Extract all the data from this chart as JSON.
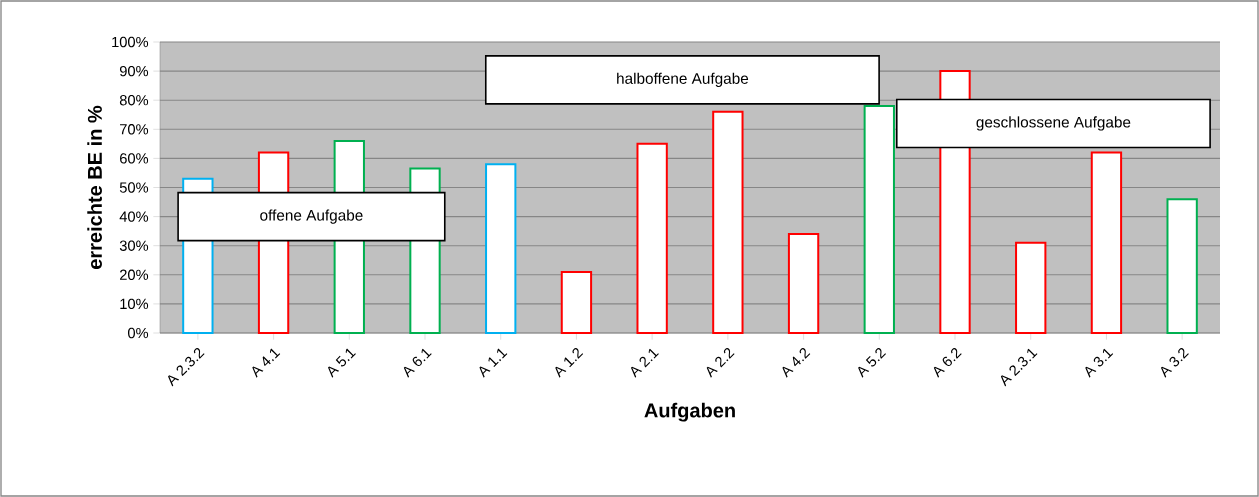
{
  "chart_data": {
    "type": "bar",
    "xlabel": "Aufgaben",
    "ylabel": "erreichte BE in %",
    "categories": [
      "A 2.3.2",
      "A 4.1",
      "A 5.1",
      "A 6.1",
      "A 1.1",
      "A 1.2",
      "A 2.1",
      "A 2.2",
      "A 4.2",
      "A 5.2",
      "A 6.2",
      "A 2.3.1",
      "A 3.1",
      "A 3.2"
    ],
    "values": [
      53,
      62,
      66,
      56.5,
      58,
      21,
      65,
      76,
      34,
      78,
      90,
      31,
      62,
      46
    ],
    "colors": [
      "#00b0f0",
      "#ff0000",
      "#00b050",
      "#00b050",
      "#00b0f0",
      "#ff0000",
      "#ff0000",
      "#ff0000",
      "#ff0000",
      "#00b050",
      "#ff0000",
      "#ff0000",
      "#ff0000",
      "#00b050"
    ],
    "ylim": [
      0,
      100
    ],
    "yticks": [
      {
        "value": 0,
        "label": "0%"
      },
      {
        "value": 10,
        "label": "10%"
      },
      {
        "value": 20,
        "label": "20%"
      },
      {
        "value": 30,
        "label": "30%"
      },
      {
        "value": 40,
        "label": "40%"
      },
      {
        "value": 50,
        "label": "50%"
      },
      {
        "value": 60,
        "label": "60%"
      },
      {
        "value": 70,
        "label": "70%"
      },
      {
        "value": 80,
        "label": "80%"
      },
      {
        "value": 90,
        "label": "90%"
      },
      {
        "value": 100,
        "label": "100%"
      }
    ],
    "grid": "y",
    "annotations": [
      "offene Aufgabe",
      "halboffene Aufgabe",
      "geschlossene Aufgabe"
    ]
  }
}
